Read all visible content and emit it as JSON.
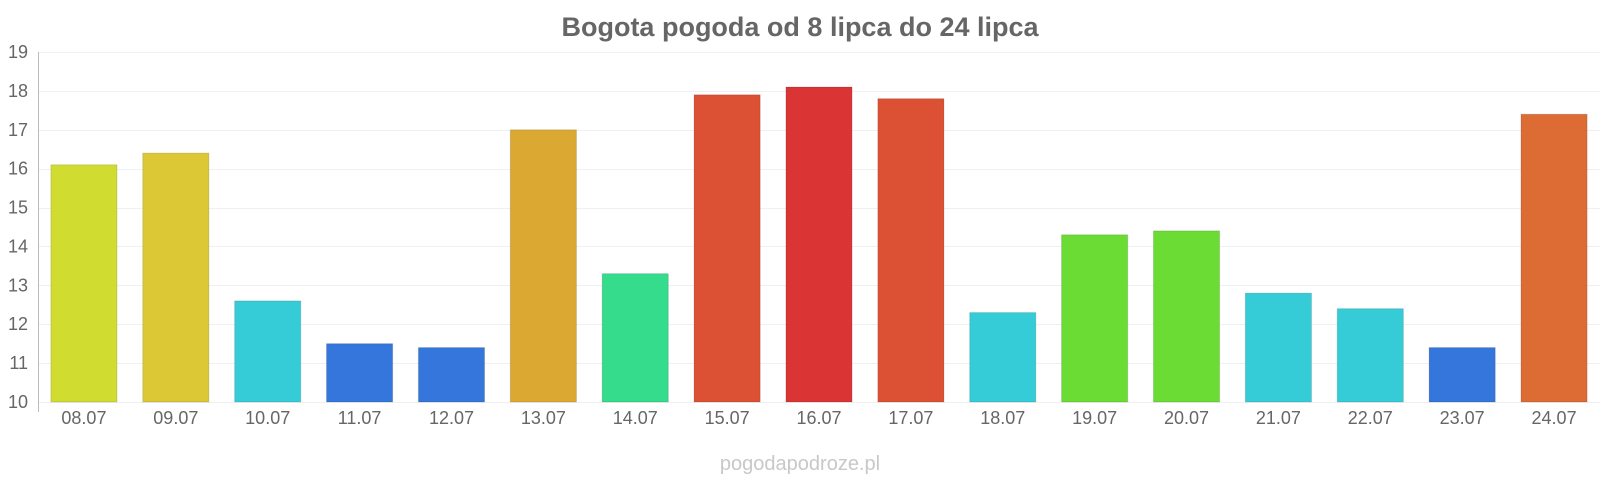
{
  "chart_data": {
    "type": "bar",
    "title": "Bogota pogoda od 8 lipca do 24 lipca",
    "xlabel": "",
    "ylabel": "",
    "ylim": [
      10,
      19
    ],
    "y_ticks": [
      "10",
      "11",
      "12",
      "13",
      "14",
      "15",
      "16",
      "17",
      "18",
      "19"
    ],
    "grid": true,
    "legend": "none",
    "categories": [
      "08.07",
      "09.07",
      "10.07",
      "11.07",
      "12.07",
      "13.07",
      "14.07",
      "15.07",
      "16.07",
      "17.07",
      "18.07",
      "19.07",
      "20.07",
      "21.07",
      "22.07",
      "23.07",
      "24.07"
    ],
    "values": [
      16.1,
      16.4,
      12.6,
      11.5,
      11.4,
      17.0,
      13.3,
      17.9,
      18.1,
      17.8,
      12.3,
      14.3,
      14.4,
      12.8,
      12.4,
      11.4,
      17.4
    ],
    "colors": [
      "#d0dc30",
      "#dbc834",
      "#35ccd8",
      "#3476dc",
      "#3476dc",
      "#dba832",
      "#34dc8c",
      "#dc5034",
      "#db3434",
      "#dc5034",
      "#35ccd8",
      "#6adc34",
      "#6adc34",
      "#35ccd8",
      "#35ccd8",
      "#3476dc",
      "#dc6c34"
    ]
  },
  "watermark": "pogodapodroze.pl"
}
